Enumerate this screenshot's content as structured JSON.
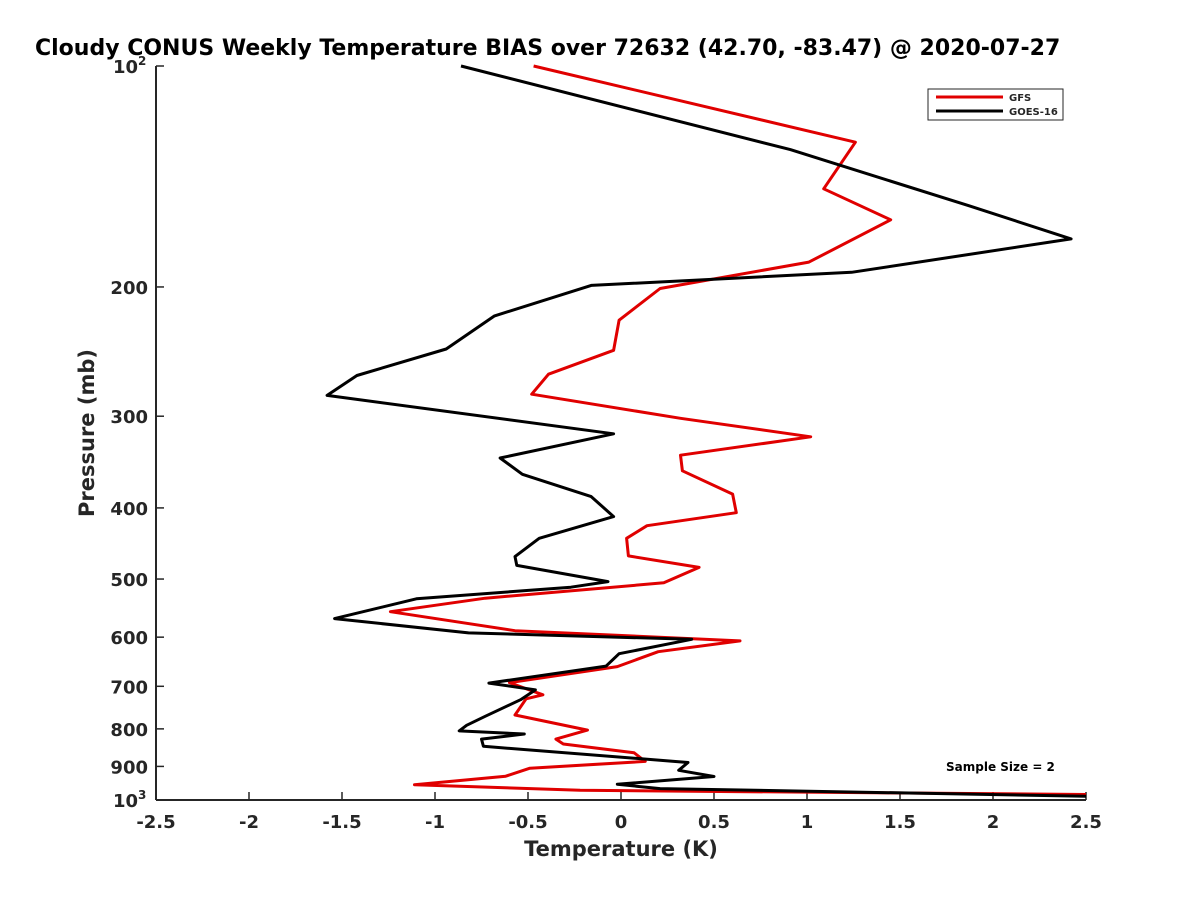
{
  "chart_data": {
    "type": "line",
    "orientation": "profile",
    "title": "Cloudy CONUS Weekly Temperature BIAS over 72632 (42.70, -83.47) @ 2020-07-27",
    "xlabel": "Temperature (K)",
    "ylabel": "Pressure (mb)",
    "xlim": [
      -2.5,
      2.5
    ],
    "ylim": [
      100,
      1000
    ],
    "y_scale": "log",
    "y_reversed": true,
    "grid": false,
    "legend_position": "top-right",
    "x_ticks": [
      -2.5,
      -2,
      -1.5,
      -1,
      -0.5,
      0,
      0.5,
      1,
      1.5,
      2,
      2.5
    ],
    "x_tick_labels": [
      "-2.5",
      "-2",
      "-1.5",
      "-1",
      "-0.5",
      "0",
      "0.5",
      "1",
      "1.5",
      "2",
      "2.5"
    ],
    "y_ticks": [
      100,
      200,
      300,
      400,
      500,
      600,
      700,
      800,
      900,
      1000
    ],
    "y_tick_labels": [
      {
        "base": "10",
        "sup": "2"
      },
      {
        "base": "200",
        "sup": ""
      },
      {
        "base": "300",
        "sup": ""
      },
      {
        "base": "400",
        "sup": ""
      },
      {
        "base": "500",
        "sup": ""
      },
      {
        "base": "600",
        "sup": ""
      },
      {
        "base": "700",
        "sup": ""
      },
      {
        "base": "800",
        "sup": ""
      },
      {
        "base": "900",
        "sup": ""
      },
      {
        "base": "10",
        "sup": "3"
      }
    ],
    "annotation": "Sample Size = 2",
    "series": [
      {
        "name": "GFS",
        "color": "#e00000",
        "points": [
          [
            -0.47,
            100
          ],
          [
            1.26,
            127
          ],
          [
            1.09,
            147
          ],
          [
            1.45,
            162
          ],
          [
            1.01,
            185
          ],
          [
            0.21,
            201
          ],
          [
            -0.01,
            222
          ],
          [
            -0.04,
            244
          ],
          [
            -0.39,
            263
          ],
          [
            -0.48,
            280
          ],
          [
            0.32,
            302
          ],
          [
            1.02,
            320
          ],
          [
            0.32,
            339
          ],
          [
            0.33,
            356
          ],
          [
            0.6,
            383
          ],
          [
            0.62,
            406
          ],
          [
            0.14,
            423
          ],
          [
            0.03,
            440
          ],
          [
            0.04,
            465
          ],
          [
            0.42,
            482
          ],
          [
            0.23,
            506
          ],
          [
            -0.73,
            531
          ],
          [
            -1.24,
            554
          ],
          [
            -0.57,
            588
          ],
          [
            0.64,
            607
          ],
          [
            0.2,
            628
          ],
          [
            -0.02,
            658
          ],
          [
            -0.6,
            692
          ],
          [
            -0.42,
            719
          ],
          [
            -0.51,
            728
          ],
          [
            -0.57,
            766
          ],
          [
            -0.18,
            803
          ],
          [
            -0.35,
            826
          ],
          [
            -0.31,
            839
          ],
          [
            0.07,
            862
          ],
          [
            0.13,
            886
          ],
          [
            -0.49,
            905
          ],
          [
            -0.62,
            928
          ],
          [
            -1.11,
            953
          ],
          [
            -0.22,
            970
          ],
          [
            2.5,
            983
          ]
        ]
      },
      {
        "name": "GOES-16",
        "color": "#000000",
        "points": [
          [
            -0.86,
            100
          ],
          [
            0.91,
            130
          ],
          [
            1.87,
            155
          ],
          [
            2.42,
            172
          ],
          [
            1.24,
            191
          ],
          [
            -0.16,
            199
          ],
          [
            -0.68,
            219
          ],
          [
            -0.94,
            243
          ],
          [
            -1.42,
            264
          ],
          [
            -1.58,
            281
          ],
          [
            -0.04,
            317
          ],
          [
            -0.65,
            342
          ],
          [
            -0.53,
            360
          ],
          [
            -0.16,
            386
          ],
          [
            -0.04,
            411
          ],
          [
            -0.44,
            440
          ],
          [
            -0.57,
            466
          ],
          [
            -0.56,
            479
          ],
          [
            -0.07,
            504
          ],
          [
            -0.27,
            513
          ],
          [
            -1.1,
            532
          ],
          [
            -1.54,
            566
          ],
          [
            -0.82,
            592
          ],
          [
            0.38,
            604
          ],
          [
            -0.01,
            632
          ],
          [
            -0.08,
            657
          ],
          [
            -0.71,
            693
          ],
          [
            -0.46,
            708
          ],
          [
            -0.54,
            730
          ],
          [
            -0.73,
            769
          ],
          [
            -0.83,
            791
          ],
          [
            -0.87,
            805
          ],
          [
            -0.52,
            813
          ],
          [
            -0.75,
            826
          ],
          [
            -0.74,
            845
          ],
          [
            0.36,
            889
          ],
          [
            0.31,
            911
          ],
          [
            0.5,
            929
          ],
          [
            -0.02,
            952
          ],
          [
            0.21,
            965
          ],
          [
            2.5,
            988
          ]
        ]
      }
    ]
  }
}
